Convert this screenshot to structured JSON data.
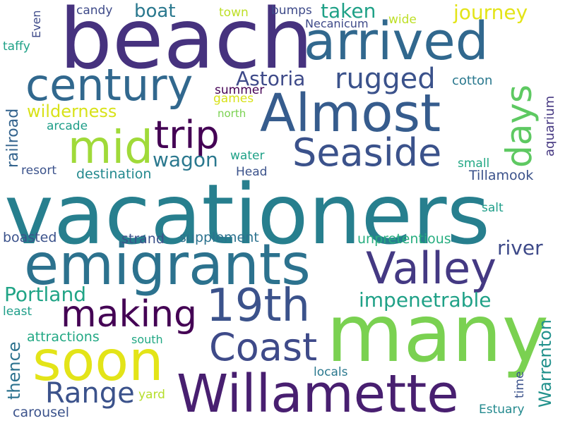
{
  "words": [
    {
      "text": "vacationers",
      "color": "#277f8e"
    },
    {
      "text": "beach",
      "color": "#46327e"
    },
    {
      "text": "many",
      "color": "#7ad151"
    },
    {
      "text": "emigrants",
      "color": "#2c728e"
    },
    {
      "text": "Willamette",
      "color": "#481f70"
    },
    {
      "text": "Almost",
      "color": "#365c8d"
    },
    {
      "text": "arrived",
      "color": "#31688e"
    },
    {
      "text": "soon",
      "color": "#e3e418"
    },
    {
      "text": "Valley",
      "color": "#443983"
    },
    {
      "text": "century",
      "color": "#31688e"
    },
    {
      "text": "19th",
      "color": "#3b528b"
    },
    {
      "text": "Coast",
      "color": "#3e4a89"
    },
    {
      "text": "mid",
      "color": "#a0da39"
    },
    {
      "text": "Seaside",
      "color": "#3b528b"
    },
    {
      "text": "making",
      "color": "#440154"
    },
    {
      "text": "trip",
      "color": "#440154"
    },
    {
      "text": "days",
      "color": "#5ec962"
    },
    {
      "text": "Range",
      "color": "#3b528b"
    },
    {
      "text": "rugged",
      "color": "#3b528b"
    },
    {
      "text": "impenetrable",
      "color": "#1fa187"
    },
    {
      "text": "Portland",
      "color": "#20a486"
    },
    {
      "text": "Warrenton",
      "color": "#21918c"
    },
    {
      "text": "journey",
      "color": "#e3e418"
    },
    {
      "text": "Astoria",
      "color": "#3e4a89"
    },
    {
      "text": "taken",
      "color": "#1fa187"
    },
    {
      "text": "river",
      "color": "#3e4a89"
    },
    {
      "text": "wagon",
      "color": "#2a788e"
    },
    {
      "text": "wilderness",
      "color": "#d8e219"
    },
    {
      "text": "boat",
      "color": "#2a788e"
    },
    {
      "text": "railroad",
      "color": "#33638d"
    },
    {
      "text": "thence",
      "color": "#2c728e"
    },
    {
      "text": "unpretentious",
      "color": "#28ae80"
    },
    {
      "text": "Tillamook",
      "color": "#3b528b"
    },
    {
      "text": "carousel",
      "color": "#3b528b"
    },
    {
      "text": "supplement",
      "color": "#2c728e"
    },
    {
      "text": "destination",
      "color": "#23898e"
    },
    {
      "text": "boasted",
      "color": "#3b528b"
    },
    {
      "text": "strand",
      "color": "#3b528b"
    },
    {
      "text": "attractions",
      "color": "#22a884"
    },
    {
      "text": "Necanicum",
      "color": "#3e4a89"
    },
    {
      "text": "aquarium",
      "color": "#453781"
    },
    {
      "text": "resort",
      "color": "#3b528b"
    },
    {
      "text": "cotton",
      "color": "#2a788e"
    },
    {
      "text": "summer",
      "color": "#440154"
    },
    {
      "text": "Estuary",
      "color": "#23898e"
    },
    {
      "text": "candy",
      "color": "#3e4a89"
    },
    {
      "text": "bumps",
      "color": "#3e4a89"
    },
    {
      "text": "taffy",
      "color": "#1fa187"
    },
    {
      "text": "arcade",
      "color": "#1f9e89"
    },
    {
      "text": "water",
      "color": "#1fa187"
    },
    {
      "text": "Head",
      "color": "#3b528b"
    },
    {
      "text": "small",
      "color": "#22a884"
    },
    {
      "text": "locals",
      "color": "#2a788e"
    },
    {
      "text": "south",
      "color": "#22a884"
    },
    {
      "text": "least",
      "color": "#1f9e89"
    },
    {
      "text": "town",
      "color": "#bddf26"
    },
    {
      "text": "wide",
      "color": "#bddf26"
    },
    {
      "text": "games",
      "color": "#d8e219"
    },
    {
      "text": "north",
      "color": "#7ad151"
    },
    {
      "text": "salt",
      "color": "#1f9e89"
    },
    {
      "text": "yard",
      "color": "#b5de2b"
    },
    {
      "text": "time",
      "color": "#3b528b"
    },
    {
      "text": "Even",
      "color": "#3e4a89"
    }
  ]
}
